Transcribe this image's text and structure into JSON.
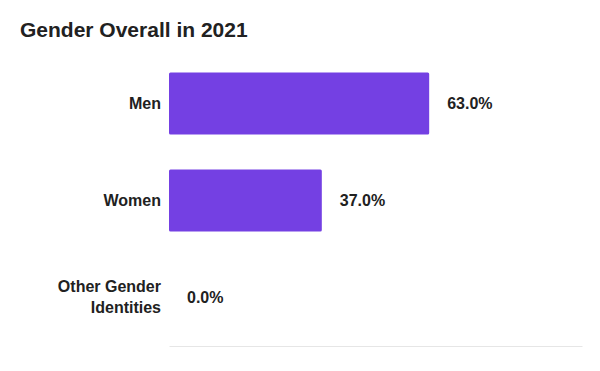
{
  "chart_data": {
    "type": "bar",
    "orientation": "horizontal",
    "title": "Gender Overall in 2021",
    "categories": [
      "Men",
      "Women",
      "Other Gender Identities"
    ],
    "values": [
      63,
      37,
      0
    ],
    "value_labels": [
      "63.0%",
      "37.0%",
      "0.0%"
    ],
    "color": "#7440e3",
    "xlim": [
      0,
      100
    ],
    "xticks": [],
    "data_labels": true,
    "tick_labels": "y",
    "grid": false
  }
}
